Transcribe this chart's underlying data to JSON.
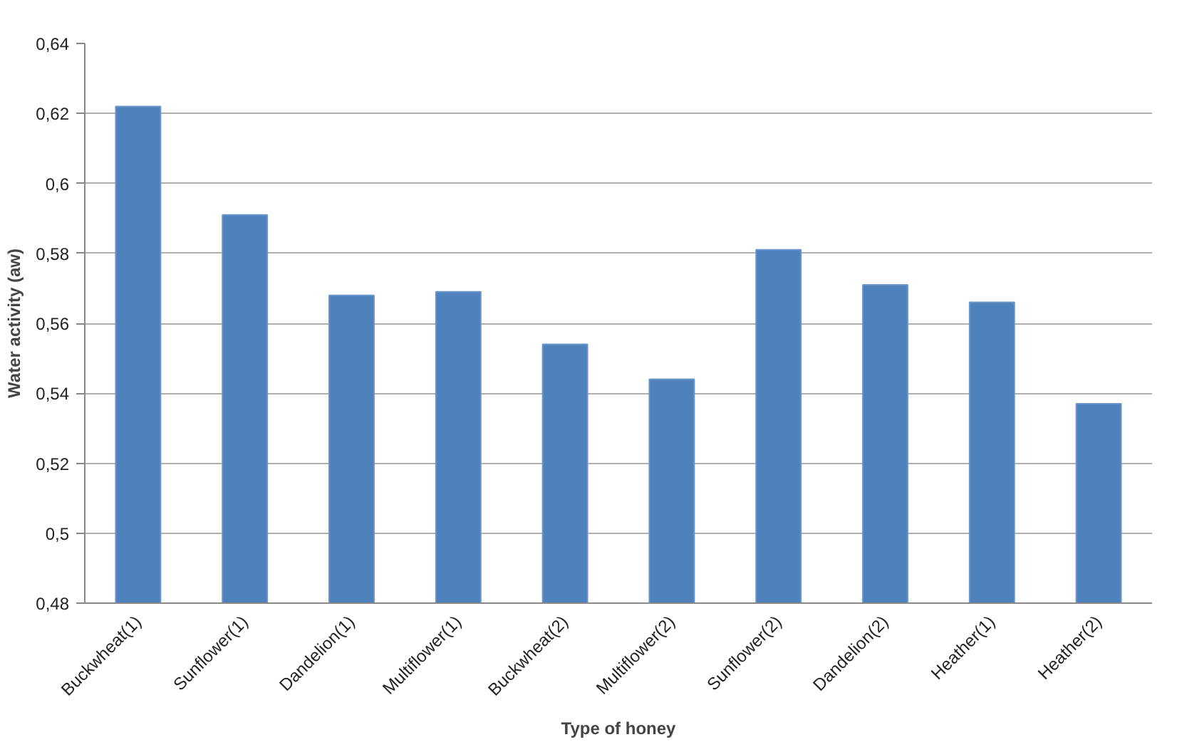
{
  "chart_data": {
    "type": "bar",
    "xlabel": "Type of honey",
    "ylabel": "Water activity (aw)",
    "categories": [
      "Buckwheat(1)",
      "Sunflower(1)",
      "Dandelion(1)",
      "Multiflower(1)",
      "Buckwheat(2)",
      "Multiflower(2)",
      "Sunflower(2)",
      "Dandelion(2)",
      "Heather(1)",
      "Heather(2)"
    ],
    "values": [
      0.622,
      0.591,
      0.568,
      0.569,
      0.554,
      0.544,
      0.581,
      0.571,
      0.566,
      0.537
    ],
    "color": "#4f81bd",
    "ylim": [
      0.48,
      0.64
    ],
    "yticks": [
      {
        "value": 0.48,
        "label": "0,48"
      },
      {
        "value": 0.5,
        "label": "0,5"
      },
      {
        "value": 0.52,
        "label": "0,52"
      },
      {
        "value": 0.54,
        "label": "0,54"
      },
      {
        "value": 0.56,
        "label": "0,56"
      },
      {
        "value": 0.58,
        "label": "0,58"
      },
      {
        "value": 0.6,
        "label": "0,6"
      },
      {
        "value": 0.62,
        "label": "0,62"
      },
      {
        "value": 0.64,
        "label": "0,64"
      }
    ],
    "grid": "y"
  }
}
